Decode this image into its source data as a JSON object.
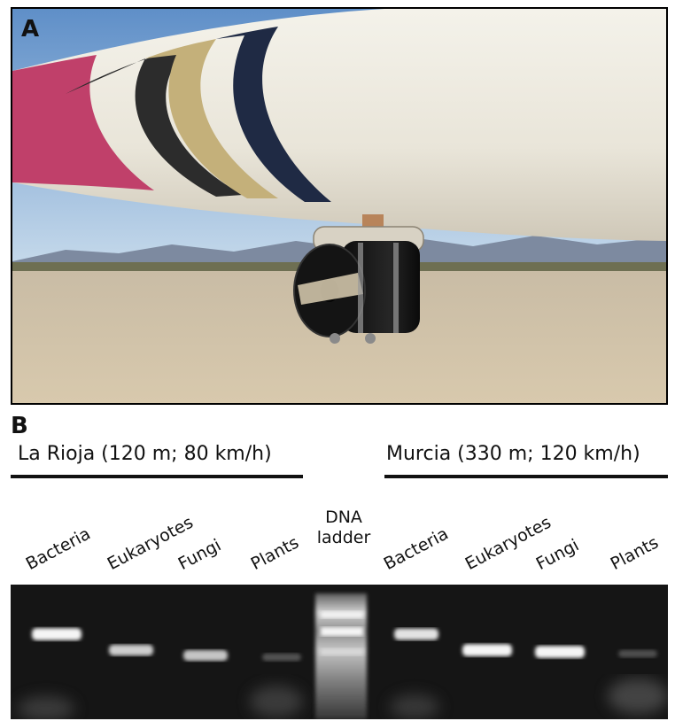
{
  "panel_a": {
    "letter": "A"
  },
  "panel_b": {
    "letter": "B",
    "groups": [
      {
        "title": "La Rioja (120 m; 80 km/h)"
      },
      {
        "title": "Murcia (330 m; 120 km/h)"
      }
    ],
    "lanes": [
      {
        "label": "Bacteria",
        "band": 0.95
      },
      {
        "label": "Eukaryotes",
        "band": 0.75
      },
      {
        "label": "Fungi",
        "band": 0.7
      },
      {
        "label": "Plants",
        "band": 0.12
      },
      {
        "label": "DNA ladder"
      },
      {
        "label": "Bacteria",
        "band": 0.85
      },
      {
        "label": "Eukaryotes",
        "band": 0.95
      },
      {
        "label": "Fungi",
        "band": 0.95
      },
      {
        "label": "Plants",
        "band": 0.1
      }
    ],
    "ladder_label_lines": [
      "DNA",
      "ladder"
    ]
  }
}
